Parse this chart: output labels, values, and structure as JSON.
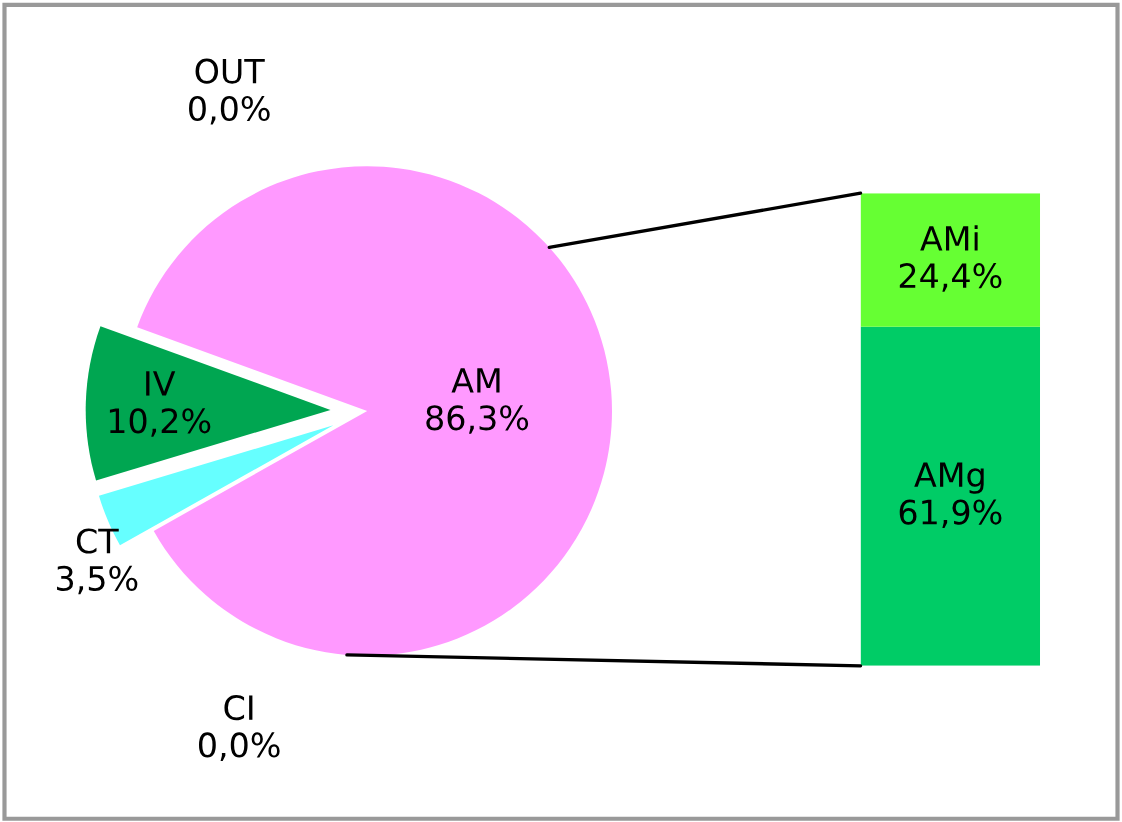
{
  "chart_data": [
    {
      "type": "pie",
      "categories": [
        "AM",
        "OUT",
        "IV",
        "CT",
        "CI"
      ],
      "values": [
        86.3,
        0.0,
        10.2,
        3.5,
        0.0
      ],
      "colors": [
        "#ff99ff",
        "#00a651",
        "#00a651",
        "#66ffff",
        "#ff99ff"
      ],
      "value_labels": [
        "86,3%",
        "0,0%",
        "10,2%",
        "3,5%",
        "0,0%"
      ],
      "legend": false
    },
    {
      "type": "bar",
      "stacked": true,
      "categories": [
        null
      ],
      "series": [
        {
          "name": "AMg",
          "color": "#00cc66",
          "values": [
            61.9
          ],
          "value_labels": [
            "61,9%"
          ]
        },
        {
          "name": "AMi",
          "color": "#66ff33",
          "values": [
            24.4
          ],
          "value_labels": [
            "24,4%"
          ]
        }
      ],
      "legend": false
    }
  ]
}
